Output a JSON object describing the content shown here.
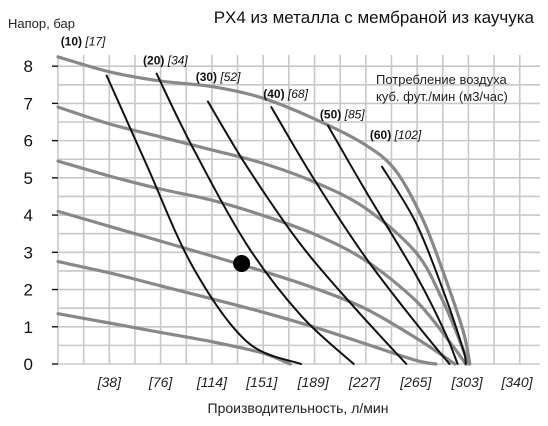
{
  "chart_data": {
    "type": "line",
    "title": "PX4 из металла с мембраной из каучука",
    "ylabel": "Напор, бар",
    "xlabel": "Производительность, л/мин",
    "note_lines": [
      "Потребление воздуха",
      "куб. фут./мин (м3/час)"
    ],
    "ylim": [
      0,
      8.3
    ],
    "y_ticks": [
      0,
      1,
      2,
      3,
      4,
      5,
      6,
      7,
      8
    ],
    "xlim": [
      0,
      357
    ],
    "x_ticks": [
      38,
      76,
      114,
      151,
      189,
      227,
      265,
      303,
      340
    ],
    "x_tick_labels": [
      "[38]",
      "[76]",
      "[114]",
      "[151]",
      "[189]",
      "[227]",
      "[265]",
      "[303]",
      "[340]"
    ],
    "grid": true,
    "air_pressure_curves": [
      {
        "points": [
          [
            0,
            8.25
          ],
          [
            38,
            7.85
          ],
          [
            76,
            7.6
          ],
          [
            114,
            7.45
          ],
          [
            151,
            7.15
          ],
          [
            189,
            6.6
          ],
          [
            227,
            5.9
          ],
          [
            250,
            5.2
          ],
          [
            270,
            3.9
          ],
          [
            285,
            2.5
          ],
          [
            300,
            0.9
          ],
          [
            305,
            0
          ]
        ]
      },
      {
        "points": [
          [
            0,
            6.9
          ],
          [
            38,
            6.45
          ],
          [
            76,
            6.1
          ],
          [
            114,
            5.75
          ],
          [
            151,
            5.4
          ],
          [
            189,
            4.9
          ],
          [
            227,
            4.2
          ],
          [
            265,
            3.0
          ],
          [
            285,
            1.7
          ],
          [
            300,
            0.4
          ],
          [
            304,
            0
          ]
        ]
      },
      {
        "points": [
          [
            0,
            5.45
          ],
          [
            38,
            5.05
          ],
          [
            76,
            4.7
          ],
          [
            114,
            4.4
          ],
          [
            151,
            4.0
          ],
          [
            189,
            3.5
          ],
          [
            227,
            2.8
          ],
          [
            265,
            1.7
          ],
          [
            290,
            0.6
          ],
          [
            302,
            0
          ]
        ]
      },
      {
        "points": [
          [
            0,
            4.1
          ],
          [
            38,
            3.7
          ],
          [
            76,
            3.3
          ],
          [
            114,
            2.9
          ],
          [
            151,
            2.5
          ],
          [
            189,
            2.05
          ],
          [
            227,
            1.5
          ],
          [
            265,
            0.7
          ],
          [
            294,
            0
          ]
        ]
      },
      {
        "points": [
          [
            0,
            2.75
          ],
          [
            38,
            2.45
          ],
          [
            76,
            2.1
          ],
          [
            114,
            1.75
          ],
          [
            151,
            1.4
          ],
          [
            189,
            1.0
          ],
          [
            227,
            0.55
          ],
          [
            265,
            0.1
          ],
          [
            280,
            0
          ]
        ]
      },
      {
        "points": [
          [
            0,
            1.35
          ],
          [
            38,
            1.1
          ],
          [
            76,
            0.85
          ],
          [
            114,
            0.6
          ],
          [
            151,
            0.3
          ],
          [
            172,
            0
          ]
        ]
      }
    ],
    "air_consumption_curves": [
      {
        "label_bold": "(10)",
        "label_italic": "[17]",
        "label_at": [
          2,
          8.55
        ],
        "points": [
          [
            36,
            7.75
          ],
          [
            65,
            5.4
          ],
          [
            100,
            2.6
          ],
          [
            140,
            0.6
          ],
          [
            180,
            0
          ]
        ]
      },
      {
        "label_bold": "(20)",
        "label_italic": "[34]",
        "label_at": [
          63,
          8.05
        ],
        "points": [
          [
            73,
            7.8
          ],
          [
            100,
            5.8
          ],
          [
            140,
            3.2
          ],
          [
            180,
            1.3
          ],
          [
            219,
            0
          ]
        ]
      },
      {
        "label_bold": "(30)",
        "label_italic": "[52]",
        "label_at": [
          102,
          7.6
        ],
        "points": [
          [
            111,
            7.05
          ],
          [
            140,
            5.3
          ],
          [
            180,
            3.2
          ],
          [
            220,
            1.5
          ],
          [
            258,
            0
          ]
        ]
      },
      {
        "label_bold": "(40)",
        "label_italic": "[68]",
        "label_at": [
          152,
          7.15
        ],
        "points": [
          [
            158,
            6.9
          ],
          [
            189,
            5.0
          ],
          [
            227,
            2.9
          ],
          [
            265,
            1.1
          ],
          [
            290,
            0
          ]
        ]
      },
      {
        "label_bold": "(50)",
        "label_italic": "[85]",
        "label_at": [
          194,
          6.6
        ],
        "points": [
          [
            200,
            6.4
          ],
          [
            227,
            4.7
          ],
          [
            265,
            2.4
          ],
          [
            286,
            0.9
          ],
          [
            296,
            0
          ]
        ]
      },
      {
        "label_bold": "(60)",
        "label_italic": "[102]",
        "label_at": [
          231,
          6.05
        ],
        "points": [
          [
            240,
            5.3
          ],
          [
            265,
            3.8
          ],
          [
            285,
            2.0
          ],
          [
            300,
            0.4
          ],
          [
            302,
            0
          ]
        ]
      }
    ],
    "marker_point": [
      136,
      2.7
    ],
    "colors": {
      "pressure_curve": "#888888",
      "consumption_curve": "#111111",
      "grid": "#c8c8c8",
      "marker": "#000000"
    }
  }
}
